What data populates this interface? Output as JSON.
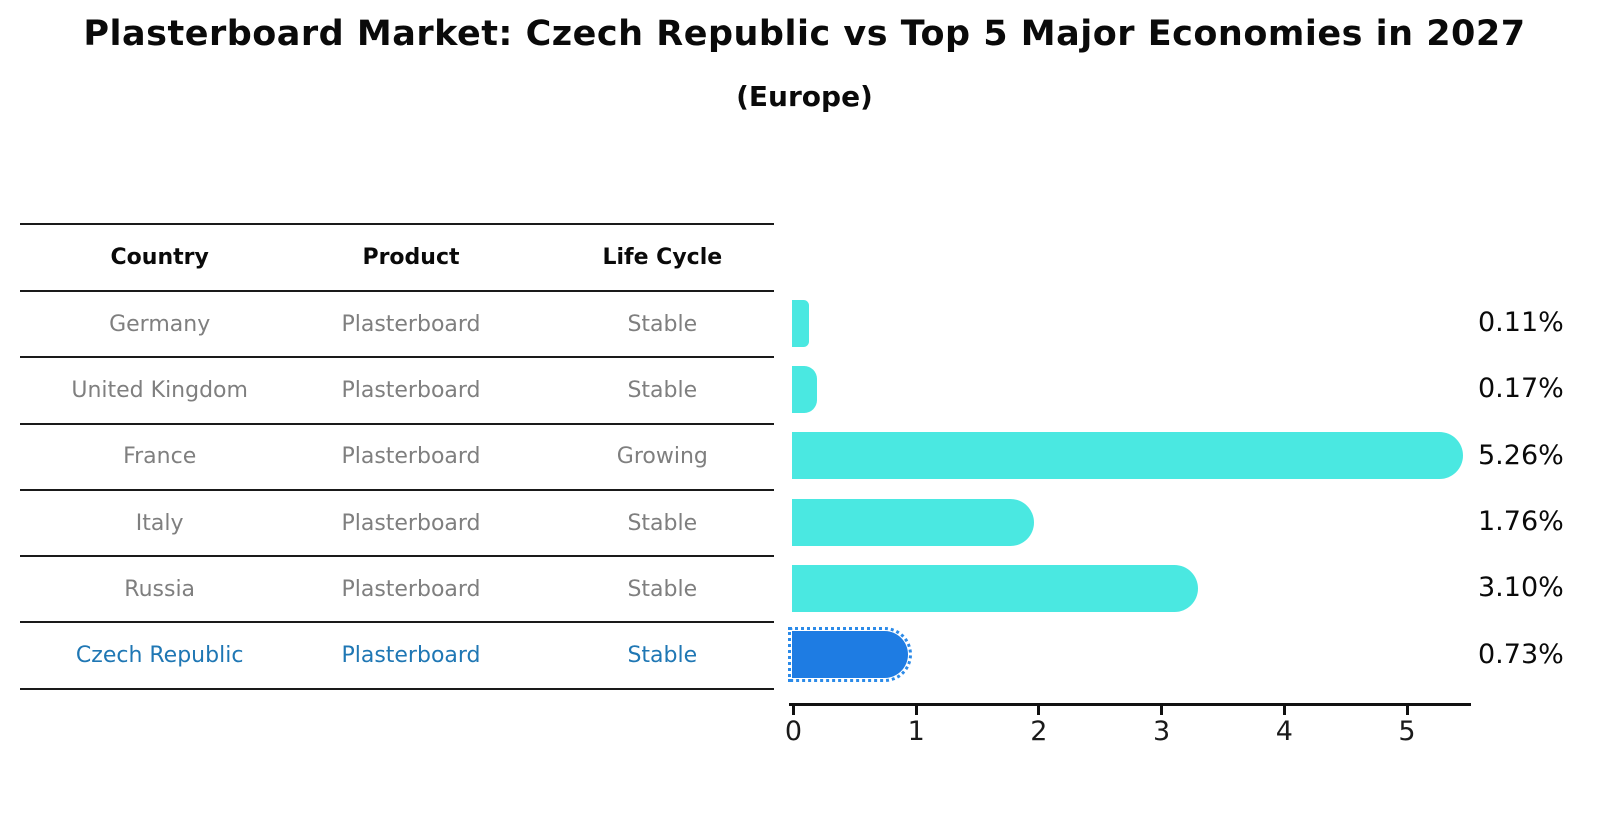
{
  "title": "Plasterboard Market: Czech Republic vs Top 5 Major Economies in 2027",
  "subtitle": "(Europe)",
  "table": {
    "headers": [
      "Country",
      "Product",
      "Life Cycle"
    ],
    "rows": [
      {
        "country": "Germany",
        "product": "Plasterboard",
        "life_cycle": "Stable",
        "highlighted": false
      },
      {
        "country": "United Kingdom",
        "product": "Plasterboard",
        "life_cycle": "Stable",
        "highlighted": false
      },
      {
        "country": "France",
        "product": "Plasterboard",
        "life_cycle": "Growing",
        "highlighted": false
      },
      {
        "country": "Italy",
        "product": "Plasterboard",
        "life_cycle": "Stable",
        "highlighted": false
      },
      {
        "country": "Russia",
        "product": "Plasterboard",
        "life_cycle": "Stable",
        "highlighted": false
      },
      {
        "country": "Czech Republic",
        "product": "Plasterboard",
        "life_cycle": "Stable",
        "highlighted": true
      }
    ]
  },
  "chart_data": {
    "type": "bar",
    "orientation": "horizontal",
    "title": "Plasterboard Market: Czech Republic vs Top 5 Major Economies in 2027",
    "subtitle": "(Europe)",
    "categories": [
      "Germany",
      "United Kingdom",
      "France",
      "Italy",
      "Russia",
      "Czech Republic"
    ],
    "values": [
      0.11,
      0.17,
      5.26,
      1.76,
      3.1,
      0.73
    ],
    "value_labels": [
      "0.11%",
      "0.17%",
      "5.26%",
      "1.76%",
      "3.10%",
      "0.73%"
    ],
    "xlabel": "",
    "ylabel": "",
    "xlim": [
      0,
      5.55
    ],
    "x_ticks": [
      "0",
      "1",
      "2",
      "3",
      "4",
      "5"
    ],
    "grid": false,
    "legend": false,
    "bar_color": "#4AE8E1",
    "highlight_index": 5,
    "highlight_color": "#1E7CE3",
    "highlight_text_color": "#1f77b4",
    "label_color": "#0a0a0a"
  }
}
